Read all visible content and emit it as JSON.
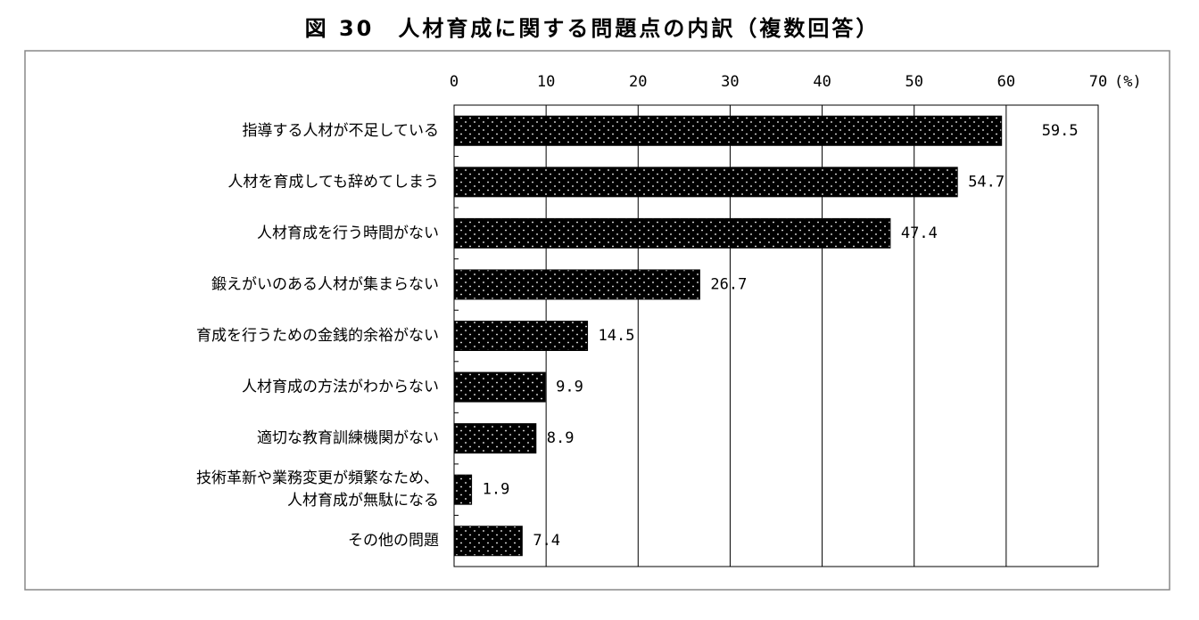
{
  "chart_data": {
    "type": "barh",
    "title": "図 30　人材育成に関する問題点の内訳（複数回答）",
    "categories": [
      "指導する人材が不足している",
      "人材を育成しても辞めてしまう",
      "人材育成を行う時間がない",
      "鍛えがいのある人材が集まらない",
      "育成を行うための金銭的余裕がない",
      "人材育成の方法がわからない",
      "適切な教育訓練機関がない",
      [
        "技術革新や業務変更が頻繁なため、",
        "人材育成が無駄になる"
      ],
      "その他の問題"
    ],
    "values": [
      59.5,
      54.7,
      47.4,
      26.7,
      14.5,
      9.9,
      8.9,
      1.9,
      7.4
    ],
    "color": "#000000",
    "xlim": [
      0,
      70
    ],
    "xticks": [
      0,
      10,
      20,
      30,
      40,
      50,
      60,
      70
    ],
    "xlabel": "(%)",
    "grid": true
  }
}
